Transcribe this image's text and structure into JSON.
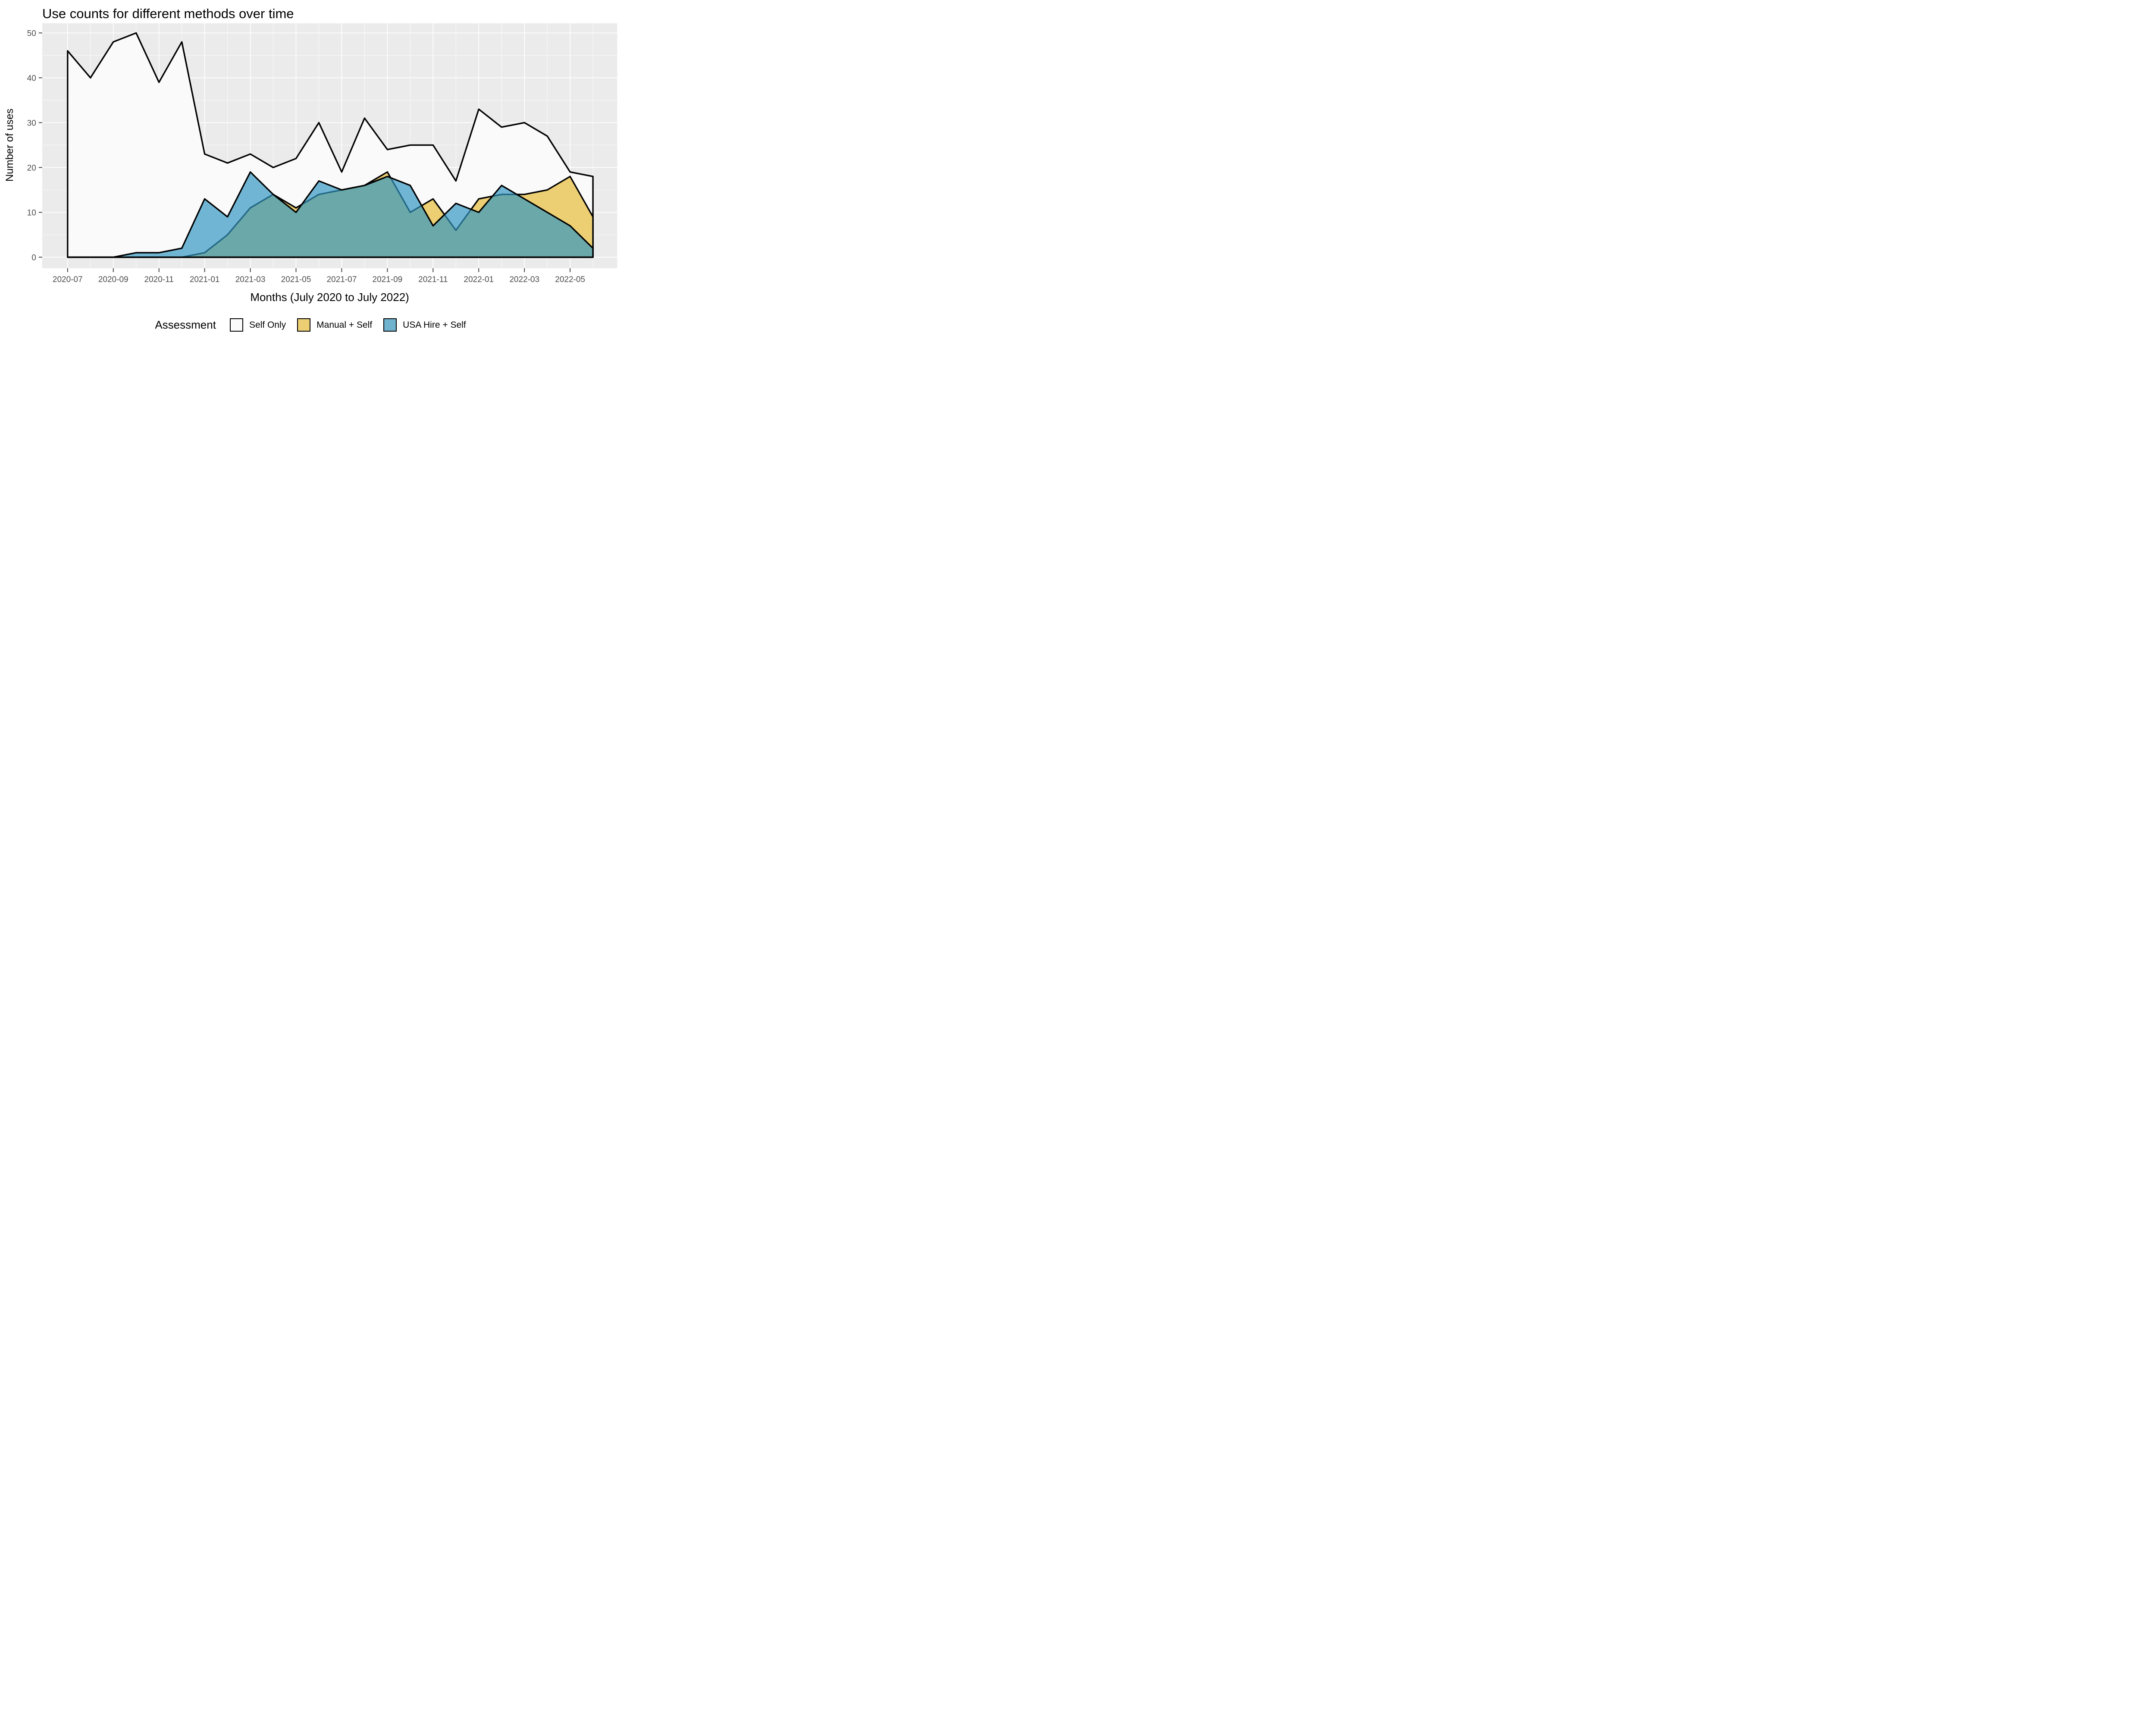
{
  "title": "Use counts for different methods over time",
  "legend": {
    "title": "Assessment",
    "items": [
      {
        "label": "Self Only",
        "swatch": "#FAFAFA"
      },
      {
        "label": "Manual + Self",
        "swatch": "#ECCF73"
      },
      {
        "label": "USA Hire + Self",
        "swatch": "#6FB3CF"
      }
    ]
  },
  "chart_data": {
    "type": "area",
    "overlap_mode": "identity (overlapping areas, not stacked)",
    "title": "Use counts for different methods over time",
    "xlabel": "Months (July 2020 to July 2022)",
    "ylabel": "Number of uses",
    "ylim": [
      0,
      50
    ],
    "y_major_ticks": [
      0,
      10,
      20,
      30,
      40,
      50
    ],
    "y_minor_gridlines": [
      5,
      15,
      25,
      35,
      45
    ],
    "grid": "on",
    "legend_position": "bottom",
    "x": [
      "2020-07",
      "2020-08",
      "2020-09",
      "2020-10",
      "2020-11",
      "2020-12",
      "2021-01",
      "2021-02",
      "2021-03",
      "2021-04",
      "2021-05",
      "2021-06",
      "2021-07",
      "2021-08",
      "2021-09",
      "2021-10",
      "2021-11",
      "2021-12",
      "2022-01",
      "2022-02",
      "2022-03",
      "2022-04",
      "2022-05",
      "2022-06"
    ],
    "x_tick_labels": [
      "2020-07",
      "2020-09",
      "2020-11",
      "2021-01",
      "2021-03",
      "2021-05",
      "2021-07",
      "2021-09",
      "2021-11",
      "2022-01",
      "2022-03",
      "2022-05"
    ],
    "series": [
      {
        "name": "Self Only",
        "fill": "#FAFAFA",
        "stroke": "#000000",
        "values": [
          46,
          40,
          48,
          50,
          39,
          48,
          23,
          21,
          23,
          20,
          22,
          30,
          19,
          31,
          24,
          25,
          25,
          17,
          33,
          29,
          30,
          27,
          19,
          18
        ]
      },
      {
        "name": "Manual + Self",
        "fill": "#ECCF73",
        "stroke": "#000000",
        "values": [
          0,
          0,
          0,
          0,
          0,
          0,
          1,
          5,
          11,
          14,
          11,
          14,
          15,
          16,
          19,
          10,
          13,
          6,
          13,
          14,
          14,
          15,
          18,
          9
        ]
      },
      {
        "name": "USA Hire + Self",
        "fill": "rgba(49,151,194,0.69)",
        "stroke": "#000000",
        "values": [
          0,
          0,
          0,
          1,
          1,
          2,
          13,
          9,
          19,
          14,
          10,
          17,
          15,
          16,
          18,
          16,
          7,
          12,
          10,
          16,
          13,
          10,
          7,
          2
        ]
      }
    ],
    "colors": {
      "panel_background": "#EBEBEB",
      "gridline": "#FFFFFF",
      "tick_text": "#4D4D4D",
      "axis_tick_mark": "#333333",
      "blue_over_yellow_overlap": "#6BA8AA"
    }
  }
}
